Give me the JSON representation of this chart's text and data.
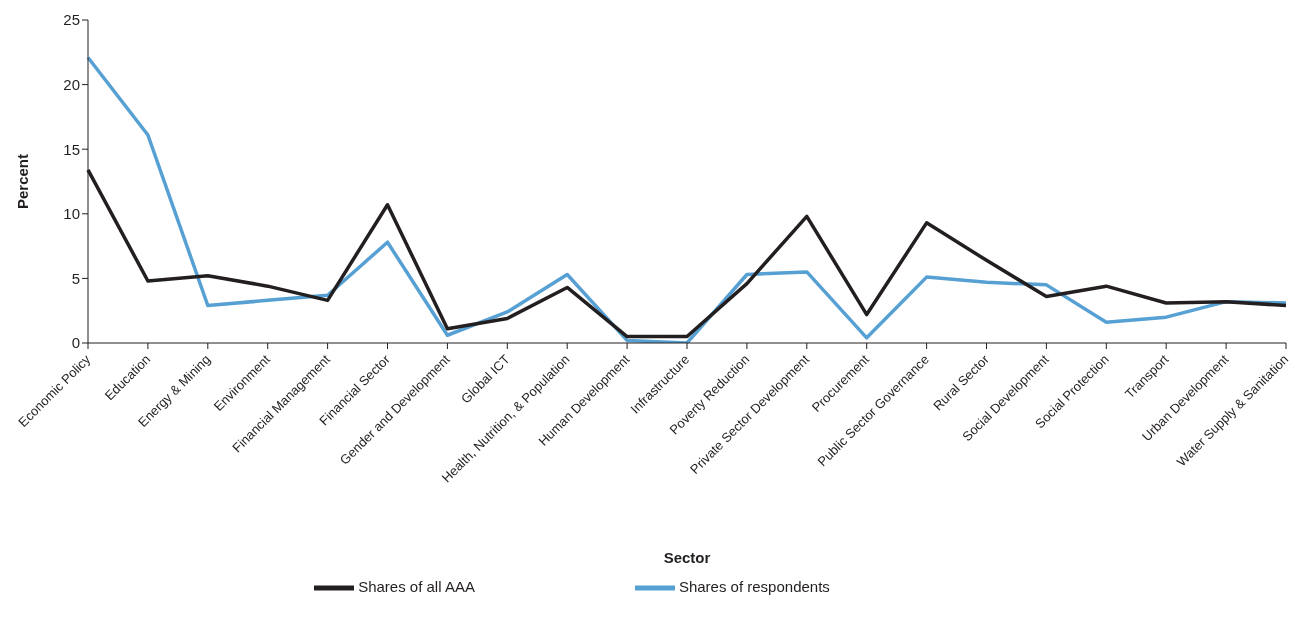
{
  "chart_data": {
    "type": "line",
    "xlabel": "Sector",
    "ylabel": "Percent",
    "categories": [
      "Economic Policy",
      "Education",
      "Energy & Mining",
      "Environment",
      "Financial Management",
      "Financial Sector",
      "Gender and Development",
      "Global ICT",
      "Health, Nutrition, & Population",
      "Human Development",
      "Infrastructure",
      "Poverty Reduction",
      "Private Sector Development",
      "Procurement",
      "Public Sector Governance",
      "Rural Sector",
      "Social Development",
      "Social Protection",
      "Transport",
      "Urban Development",
      "Water Supply & Sanitation"
    ],
    "series": [
      {
        "name": "Shares of respondents",
        "color": "#56a0d3",
        "values": [
          22.1,
          16.1,
          2.9,
          3.3,
          3.7,
          7.8,
          0.6,
          2.4,
          5.3,
          0.2,
          0.0,
          5.3,
          5.5,
          0.4,
          5.1,
          4.7,
          4.5,
          1.6,
          2.0,
          3.2,
          3.1
        ]
      },
      {
        "name": "Shares of all AAA",
        "color": "#231f20",
        "values": [
          13.4,
          4.8,
          5.2,
          4.4,
          3.3,
          10.7,
          1.1,
          1.9,
          4.3,
          0.5,
          0.5,
          4.6,
          9.8,
          2.2,
          9.3,
          6.4,
          3.6,
          4.4,
          3.1,
          3.2,
          2.9
        ]
      }
    ],
    "ylim": [
      0,
      25
    ],
    "yticks": [
      0,
      5,
      10,
      15,
      20,
      25
    ],
    "grid": false,
    "legend": "bottom",
    "marker": "none",
    "line_style": "solid"
  }
}
